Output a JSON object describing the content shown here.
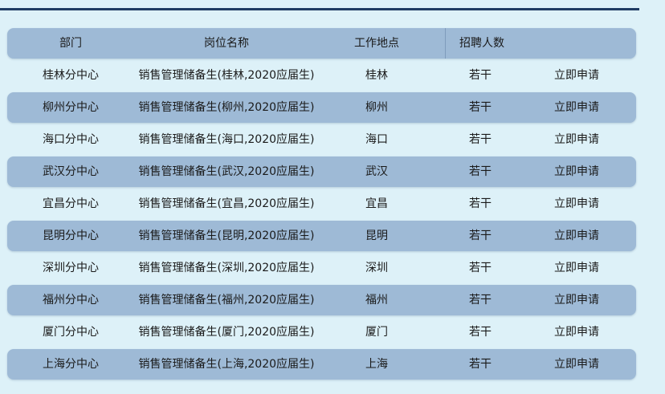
{
  "header": [
    "部门",
    "岗位名称",
    "工作地点",
    "招聘人数"
  ],
  "rows": [
    {
      "dept": "桂林分中心",
      "position": "销售管理储备生(桂林,2020应届生)",
      "location": "桂林",
      "count": "若干",
      "action": "立即申请"
    },
    {
      "dept": "柳州分中心",
      "position": "销售管理储备生(柳州,2020应届生)",
      "location": "柳州",
      "count": "若干",
      "action": "立即申请"
    },
    {
      "dept": "海口分中心",
      "position": "销售管理储备生(海口,2020应届生)",
      "location": "海口",
      "count": "若干",
      "action": "立即申请"
    },
    {
      "dept": "武汉分中心",
      "position": "销售管理储备生(武汉,2020应届生)",
      "location": "武汉",
      "count": "若干",
      "action": "立即申请"
    },
    {
      "dept": "宜昌分中心",
      "position": "销售管理储备生(宜昌,2020应届生)",
      "location": "宜昌",
      "count": "若干",
      "action": "立即申请"
    },
    {
      "dept": "昆明分中心",
      "position": "销售管理储备生(昆明,2020应届生)",
      "location": "昆明",
      "count": "若干",
      "action": "立即申请"
    },
    {
      "dept": "深圳分中心",
      "position": "销售管理储备生(深圳,2020应届生)",
      "location": "深圳",
      "count": "若干",
      "action": "立即申请"
    },
    {
      "dept": "福州分中心",
      "position": "销售管理储备生(福州,2020应届生)",
      "location": "福州",
      "count": "若干",
      "action": "立即申请"
    },
    {
      "dept": "厦门分中心",
      "position": "销售管理储备生(厦门,2020应届生)",
      "location": "厦门",
      "count": "若干",
      "action": "立即申请"
    },
    {
      "dept": "上海分中心",
      "position": "销售管理储备生(上海,2020应届生)",
      "location": "上海",
      "count": "若干",
      "action": "立即申请"
    }
  ],
  "colors": {
    "background": "#ddf1f8",
    "row_highlight": "#9ebad6",
    "top_line": "#1f3c63"
  }
}
